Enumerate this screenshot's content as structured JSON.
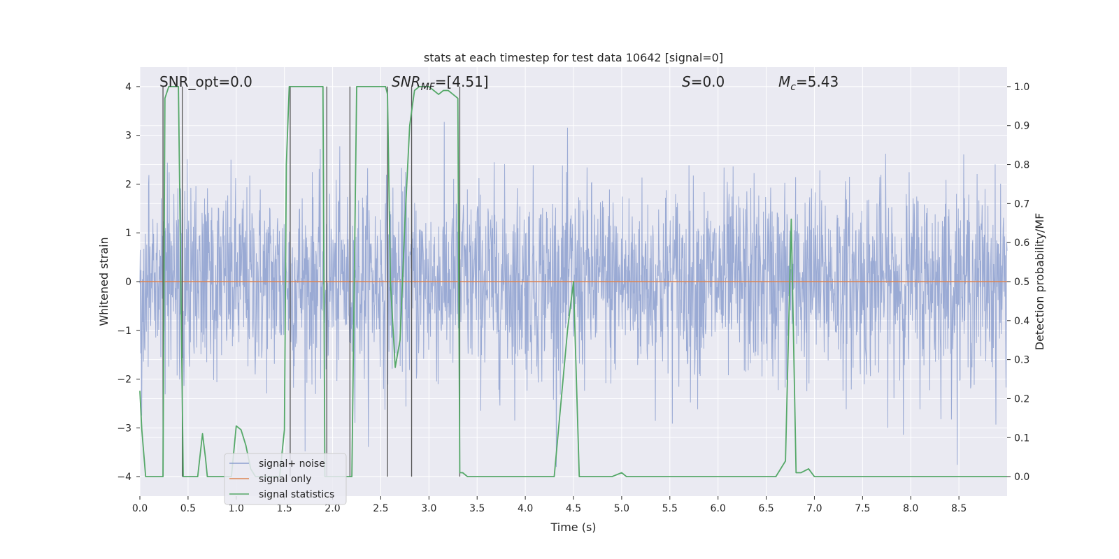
{
  "chart_data": {
    "type": "line",
    "title": "stats at each timestep for test data 10642 [signal=0]",
    "xlabel": "Time (s)",
    "ylabel": "Whitened strain",
    "y2label": "Detection probability/MF",
    "xlim": [
      0.0,
      9.0
    ],
    "ylim": [
      -4.4,
      4.4
    ],
    "y2lim": [
      -0.05,
      1.05
    ],
    "xticks": [
      "0.0",
      "0.5",
      "1.0",
      "1.5",
      "2.0",
      "2.5",
      "3.0",
      "3.5",
      "4.0",
      "4.5",
      "5.0",
      "5.5",
      "6.0",
      "6.5",
      "7.0",
      "7.5",
      "8.0",
      "8.5"
    ],
    "xtick_values": [
      0.0,
      0.5,
      1.0,
      1.5,
      2.0,
      2.5,
      3.0,
      3.5,
      4.0,
      4.5,
      5.0,
      5.5,
      6.0,
      6.5,
      7.0,
      7.5,
      8.0,
      8.5
    ],
    "yticks": [
      "4",
      "3",
      "2",
      "1",
      "0",
      "−1",
      "−2",
      "−3",
      "−4"
    ],
    "ytick_values": [
      4,
      3,
      2,
      1,
      0,
      -1,
      -2,
      -3,
      -4
    ],
    "y2ticks": [
      "1.0",
      "0.9",
      "0.8",
      "0.7",
      "0.6",
      "0.5",
      "0.4",
      "0.3",
      "0.2",
      "0.1",
      "0.0"
    ],
    "y2tick_values": [
      1.0,
      0.9,
      0.8,
      0.7,
      0.6,
      0.5,
      0.4,
      0.3,
      0.2,
      0.1,
      0.0
    ],
    "annotations": {
      "snr_opt": "SNR_opt=0.0",
      "snr_mf_main": "SNR",
      "snr_mf_sub": "MF",
      "snr_mf_value": "=[4.51]",
      "s_var": "S",
      "s_value": "=0.0",
      "mc_main": "M",
      "mc_sub": "c",
      "mc_value": "=5.43"
    },
    "legend": {
      "location": "lower-left",
      "entries": [
        "signal+ noise",
        "signal only",
        "signal statistics"
      ]
    },
    "colors": {
      "noise": "#8c9fcf",
      "signal": "#dd8452",
      "stats": "#55a868",
      "vlines": "#555555",
      "plot_bg": "#eaeaf2",
      "grid": "#ffffff"
    },
    "series": [
      {
        "name": "signal+ noise",
        "kind": "noise",
        "x_range": [
          0.0,
          9.0
        ],
        "approx_std": 1.0,
        "approx_extremes": [
          3.3,
          -3.8
        ]
      },
      {
        "name": "signal only",
        "kind": "constant",
        "value": 0.0
      },
      {
        "name": "signal statistics",
        "kind": "probability",
        "x": [
          0.0,
          0.02,
          0.06,
          0.1,
          0.15,
          0.2,
          0.24,
          0.26,
          0.3,
          0.35,
          0.4,
          0.45,
          0.48,
          0.5,
          0.55,
          0.6,
          0.65,
          0.68,
          0.7,
          0.75,
          0.8,
          0.85,
          0.9,
          0.95,
          1.0,
          1.05,
          1.1,
          1.15,
          1.2,
          1.3,
          1.4,
          1.45,
          1.5,
          1.52,
          1.55,
          1.6,
          1.65,
          1.7,
          1.75,
          1.8,
          1.85,
          1.88,
          1.9,
          1.92,
          1.95,
          2.0,
          2.05,
          2.1,
          2.15,
          2.2,
          2.25,
          2.3,
          2.35,
          2.4,
          2.45,
          2.5,
          2.55,
          2.57,
          2.6,
          2.65,
          2.7,
          2.75,
          2.8,
          2.85,
          2.9,
          2.95,
          3.0,
          3.05,
          3.1,
          3.15,
          3.2,
          3.25,
          3.3,
          3.32,
          3.35,
          3.4,
          3.5,
          3.6,
          3.7,
          3.8,
          3.9,
          4.0,
          4.1,
          4.2,
          4.3,
          4.44,
          4.5,
          4.56,
          4.62,
          4.7,
          4.8,
          4.9,
          5.0,
          5.05,
          5.1,
          5.2,
          5.4,
          5.6,
          5.8,
          6.0,
          6.2,
          6.4,
          6.6,
          6.7,
          6.76,
          6.81,
          6.86,
          6.94,
          7.0,
          7.06,
          7.12,
          7.3,
          7.5,
          7.8,
          8.0,
          8.2,
          8.5,
          8.8,
          9.0
        ],
        "y": [
          0.22,
          0.12,
          0.0,
          0.0,
          0.0,
          0.0,
          0.0,
          0.97,
          1.0,
          1.0,
          1.0,
          0.0,
          0.0,
          0.0,
          0.0,
          0.0,
          0.11,
          0.05,
          0.0,
          0.0,
          0.0,
          0.0,
          0.0,
          0.0,
          0.13,
          0.12,
          0.08,
          0.02,
          0.0,
          0.0,
          0.0,
          0.0,
          0.12,
          0.8,
          1.0,
          1.0,
          1.0,
          1.0,
          1.0,
          1.0,
          1.0,
          1.0,
          1.0,
          0.0,
          0.0,
          0.0,
          0.0,
          0.0,
          0.0,
          0.0,
          1.0,
          1.0,
          1.0,
          1.0,
          1.0,
          1.0,
          1.0,
          0.98,
          0.5,
          0.28,
          0.35,
          0.65,
          0.9,
          0.99,
          1.0,
          1.0,
          1.0,
          0.99,
          0.98,
          0.99,
          0.99,
          0.98,
          0.97,
          0.01,
          0.01,
          0.0,
          0.0,
          0.0,
          0.0,
          0.0,
          0.0,
          0.0,
          0.0,
          0.0,
          0.0,
          0.38,
          0.5,
          0.0,
          0.0,
          0.0,
          0.0,
          0.0,
          0.01,
          0.0,
          0.0,
          0.0,
          0.0,
          0.0,
          0.0,
          0.0,
          0.0,
          0.0,
          0.0,
          0.04,
          0.66,
          0.01,
          0.01,
          0.02,
          0.0,
          0.0,
          0.0,
          0.0,
          0.0,
          0.0,
          0.0,
          0.0,
          0.0,
          0.0,
          0.0
        ]
      }
    ],
    "vlines_x": [
      0.24,
      0.44,
      1.56,
      1.94,
      2.18,
      2.57,
      2.82,
      3.32
    ]
  }
}
